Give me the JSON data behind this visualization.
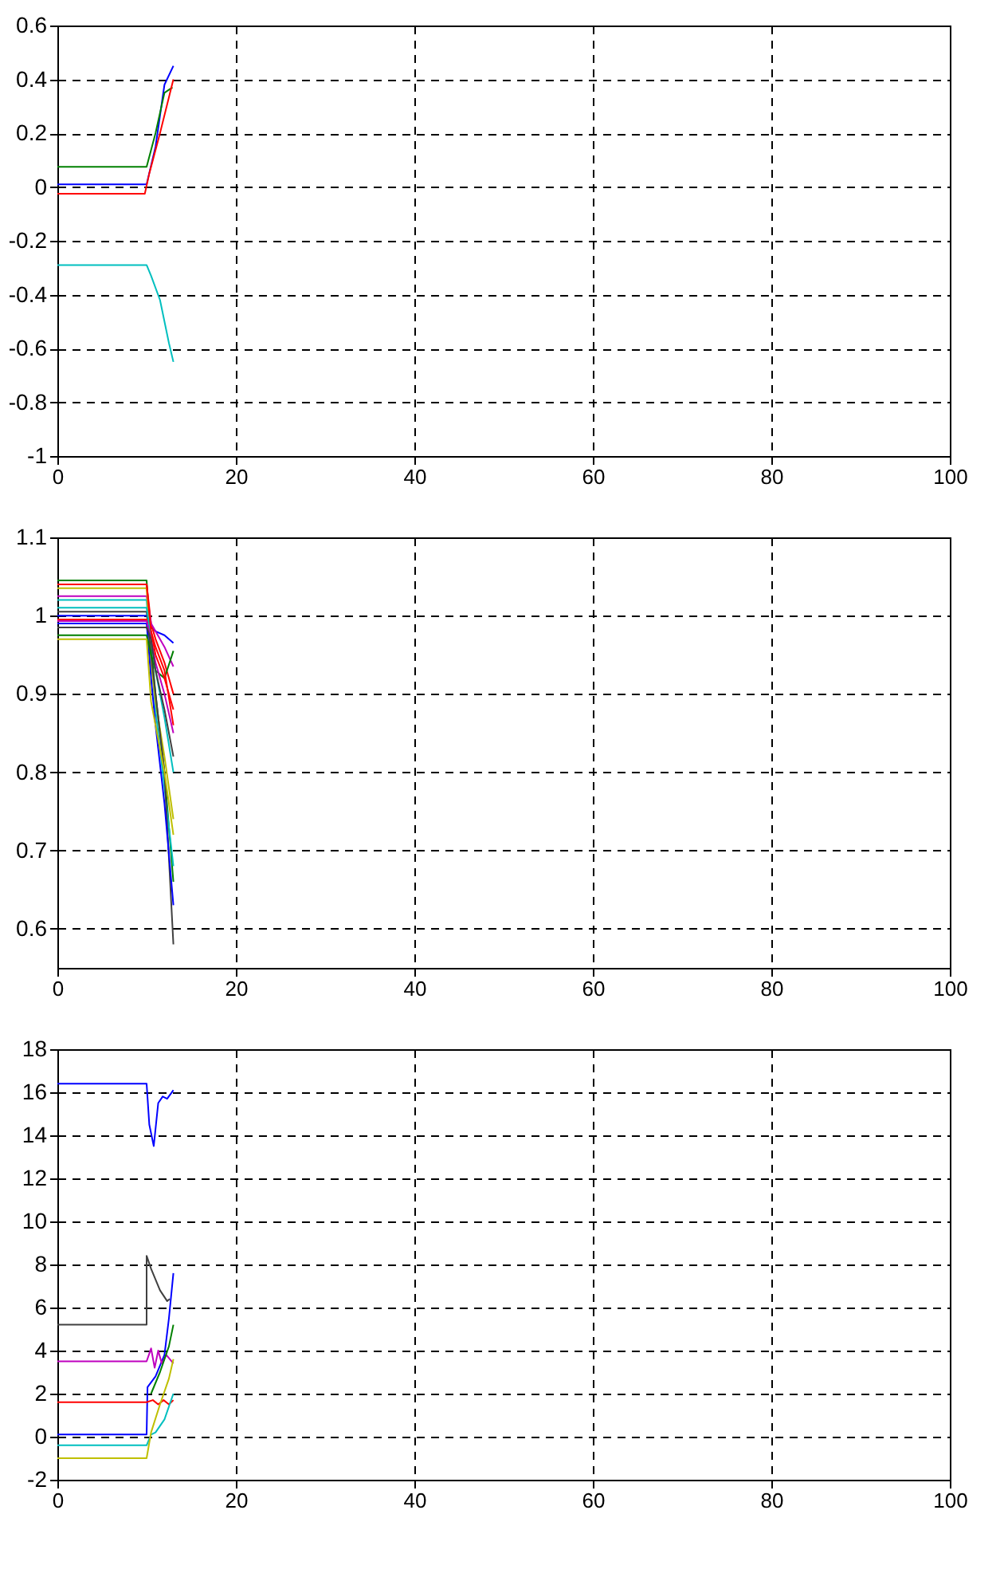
{
  "chart_data": [
    {
      "type": "line",
      "xlim": [
        0,
        100
      ],
      "xticks": [
        0,
        20,
        40,
        60,
        80,
        100
      ],
      "ylim": [
        -1,
        0.6
      ],
      "yticks": [
        {
          "value": -1,
          "label": "-1"
        },
        -0.8,
        -0.6,
        -0.4,
        -0.2,
        0,
        0.2,
        0.4,
        0.6
      ],
      "grid": true,
      "series": [
        {
          "color": "#0000ff",
          "x": [
            0,
            10,
            11,
            12,
            13
          ],
          "values": [
            0.01,
            0.01,
            0.15,
            0.38,
            0.45
          ]
        },
        {
          "color": "#008000",
          "x": [
            0,
            10,
            11,
            12,
            12.9
          ],
          "values": [
            0.075,
            0.075,
            0.2,
            0.35,
            0.37
          ]
        },
        {
          "color": "#ff0000",
          "x": [
            0,
            9.8,
            10.3,
            11.5,
            13
          ],
          "values": [
            -0.025,
            -0.025,
            0.05,
            0.2,
            0.4
          ]
        },
        {
          "color": "#00bfbf",
          "x": [
            0,
            10,
            10.5,
            11.5,
            12.5,
            13
          ],
          "values": [
            -0.29,
            -0.29,
            -0.33,
            -0.42,
            -0.58,
            -0.65
          ]
        }
      ]
    },
    {
      "type": "line",
      "xlim": [
        0,
        100
      ],
      "xticks": [
        0,
        20,
        40,
        60,
        80,
        100
      ],
      "ylim": [
        0.55,
        1.1
      ],
      "yticks": [
        0.6,
        0.7,
        0.8,
        0.9,
        1,
        1.1
      ],
      "grid": true,
      "series": [
        {
          "color": "#0000ff",
          "x": [
            0,
            10,
            10.5,
            11,
            12,
            13
          ],
          "values": [
            1.0,
            1.0,
            0.985,
            0.98,
            0.975,
            0.965
          ]
        },
        {
          "color": "#008000",
          "x": [
            0,
            10,
            10.5,
            11,
            12,
            13
          ],
          "values": [
            1.045,
            1.045,
            0.96,
            0.9,
            0.8,
            0.66
          ]
        },
        {
          "color": "#ff0000",
          "x": [
            0,
            10,
            10.5,
            11,
            12,
            13
          ],
          "values": [
            1.04,
            1.04,
            0.99,
            0.97,
            0.94,
            0.9
          ]
        },
        {
          "color": "#00bfbf",
          "x": [
            0,
            10,
            10.5,
            11,
            12,
            13
          ],
          "values": [
            1.02,
            1.02,
            0.95,
            0.88,
            0.78,
            0.68
          ]
        },
        {
          "color": "#bf00bf",
          "x": [
            0,
            10,
            10.5,
            11,
            12,
            13
          ],
          "values": [
            1.025,
            1.025,
            0.99,
            0.98,
            0.96,
            0.935
          ]
        },
        {
          "color": "#bfbf00",
          "x": [
            0,
            10,
            10.5,
            11,
            12,
            13
          ],
          "values": [
            1.035,
            1.035,
            0.94,
            0.89,
            0.82,
            0.74
          ]
        },
        {
          "color": "#404040",
          "x": [
            0,
            10,
            10.5,
            11,
            12,
            13
          ],
          "values": [
            1.005,
            1.005,
            0.95,
            0.9,
            0.8,
            0.58
          ]
        },
        {
          "color": "#0000ff",
          "x": [
            0,
            10,
            10.5,
            11,
            12,
            13
          ],
          "values": [
            0.99,
            0.99,
            0.92,
            0.86,
            0.76,
            0.63
          ]
        },
        {
          "color": "#008000",
          "x": [
            0,
            10,
            10.5,
            11,
            12,
            13
          ],
          "values": [
            0.975,
            0.975,
            0.95,
            0.93,
            0.92,
            0.955
          ]
        },
        {
          "color": "#ff0000",
          "x": [
            0,
            10,
            10.5,
            11,
            12,
            13
          ],
          "values": [
            0.995,
            0.995,
            0.98,
            0.96,
            0.93,
            0.86
          ]
        },
        {
          "color": "#00bfbf",
          "x": [
            0,
            10,
            10.5,
            11,
            12,
            13
          ],
          "values": [
            1.01,
            1.01,
            0.97,
            0.93,
            0.87,
            0.8
          ]
        },
        {
          "color": "#bf00bf",
          "x": [
            0,
            10,
            10.5,
            11,
            12,
            13
          ],
          "values": [
            0.993,
            0.993,
            0.97,
            0.94,
            0.9,
            0.85
          ]
        },
        {
          "color": "#bfbf00",
          "x": [
            0,
            10,
            10.5,
            11,
            12,
            13
          ],
          "values": [
            0.97,
            0.97,
            0.89,
            0.86,
            0.8,
            0.72
          ]
        },
        {
          "color": "#404040",
          "x": [
            0,
            10,
            10.5,
            11,
            12,
            13
          ],
          "values": [
            0.985,
            0.985,
            0.97,
            0.93,
            0.88,
            0.82
          ]
        },
        {
          "color": "#ff0000",
          "x": [
            0,
            10,
            10.5,
            11,
            12,
            13
          ],
          "values": [
            1.04,
            1.04,
            0.98,
            0.95,
            0.92,
            0.88
          ]
        }
      ]
    },
    {
      "type": "line",
      "xlim": [
        0,
        100
      ],
      "xticks": [
        0,
        20,
        40,
        60,
        80,
        100
      ],
      "ylim": [
        -2,
        18
      ],
      "yticks": [
        -2,
        0,
        2,
        4,
        6,
        8,
        10,
        12,
        14,
        16,
        18
      ],
      "grid": true,
      "series": [
        {
          "color": "#0000ff",
          "x": [
            0,
            10,
            10.3,
            10.8,
            11.3,
            11.8,
            12.3,
            13
          ],
          "values": [
            16.4,
            16.4,
            14.5,
            13.5,
            15.5,
            15.8,
            15.7,
            16.1
          ]
        },
        {
          "color": "#404040",
          "x": [
            0,
            10,
            10,
            10.5,
            11.5,
            12.3,
            12.6
          ],
          "values": [
            5.2,
            5.2,
            8.4,
            7.8,
            6.8,
            6.3,
            6.4
          ]
        },
        {
          "color": "#0000ff",
          "x": [
            0,
            10,
            10.1,
            11,
            12,
            12.5,
            13
          ],
          "values": [
            0.1,
            0.1,
            2.3,
            2.8,
            3.8,
            5.5,
            7.6
          ]
        },
        {
          "color": "#bf00bf",
          "x": [
            0,
            10,
            10.5,
            10.9,
            11.3,
            11.7,
            12.2,
            13
          ],
          "values": [
            3.5,
            3.5,
            4.1,
            3.2,
            4.0,
            3.4,
            3.8,
            3.4
          ]
        },
        {
          "color": "#008000",
          "x": [
            10.5,
            11.5,
            12.5,
            13
          ],
          "values": [
            2.0,
            3.0,
            4.2,
            5.2
          ]
        },
        {
          "color": "#ff0000",
          "x": [
            0,
            10,
            10.7,
            11.3,
            11.9,
            12.5,
            13
          ],
          "values": [
            1.6,
            1.6,
            1.7,
            1.5,
            1.7,
            1.5,
            1.7
          ]
        },
        {
          "color": "#00bfbf",
          "x": [
            0,
            10,
            10.5,
            11,
            12,
            13
          ],
          "values": [
            -0.4,
            -0.4,
            0.1,
            0.2,
            0.8,
            2.0
          ]
        },
        {
          "color": "#bfbf00",
          "x": [
            0,
            10,
            10.5,
            11.5,
            12.5,
            13
          ],
          "values": [
            -1,
            -1,
            0.2,
            1.5,
            2.7,
            3.6
          ]
        }
      ]
    }
  ]
}
